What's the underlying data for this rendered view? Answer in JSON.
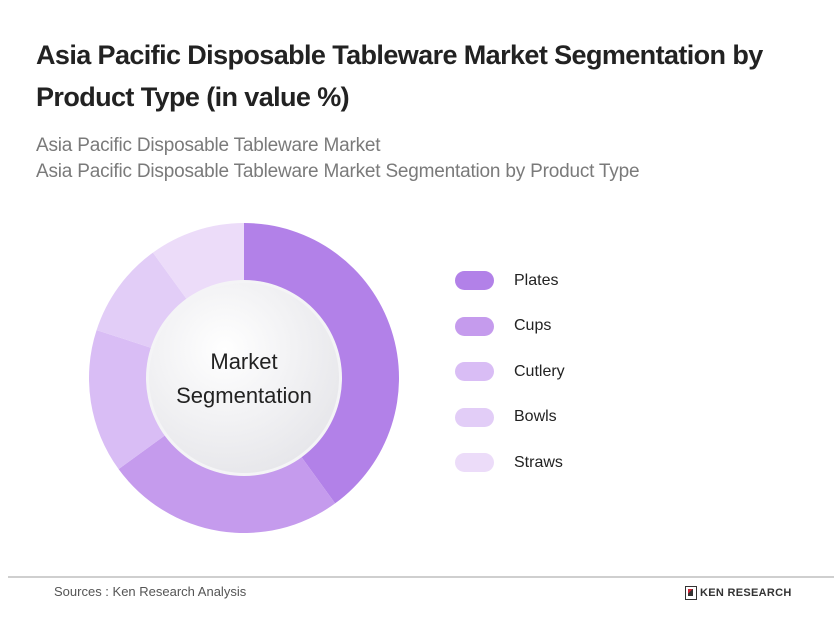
{
  "header": {
    "title": "Asia Pacific Disposable Tableware Market Segmentation by Product Type (in value %)",
    "subtitle_line1": "Asia Pacific Disposable Tableware Market",
    "subtitle_line2": "Asia Pacific Disposable Tableware Market Segmentation by Product Type"
  },
  "center": {
    "line1": "Market",
    "line2": "Segmentation"
  },
  "legend": [
    {
      "label": "Plates",
      "color": "#b281e8"
    },
    {
      "label": "Cups",
      "color": "#c59bed"
    },
    {
      "label": "Cutlery",
      "color": "#d9bdf5"
    },
    {
      "label": "Bowls",
      "color": "#e2cdf7"
    },
    {
      "label": "Straws",
      "color": "#ecdcf9"
    }
  ],
  "footer": {
    "source": "Sources : Ken Research Analysis",
    "brand": "KEN RESEARCH"
  },
  "chart_data": {
    "type": "pie",
    "title": "Asia Pacific Disposable Tableware Market Segmentation by Product Type (in value %)",
    "categories": [
      "Plates",
      "Cups",
      "Cutlery",
      "Bowls",
      "Straws"
    ],
    "values": [
      40,
      25,
      15,
      10,
      10
    ],
    "colors": [
      "#b281e8",
      "#c59bed",
      "#d9bdf5",
      "#e2cdf7",
      "#ecdcf9"
    ],
    "donut": true,
    "center_label": "Market Segmentation",
    "legend_position": "right"
  }
}
